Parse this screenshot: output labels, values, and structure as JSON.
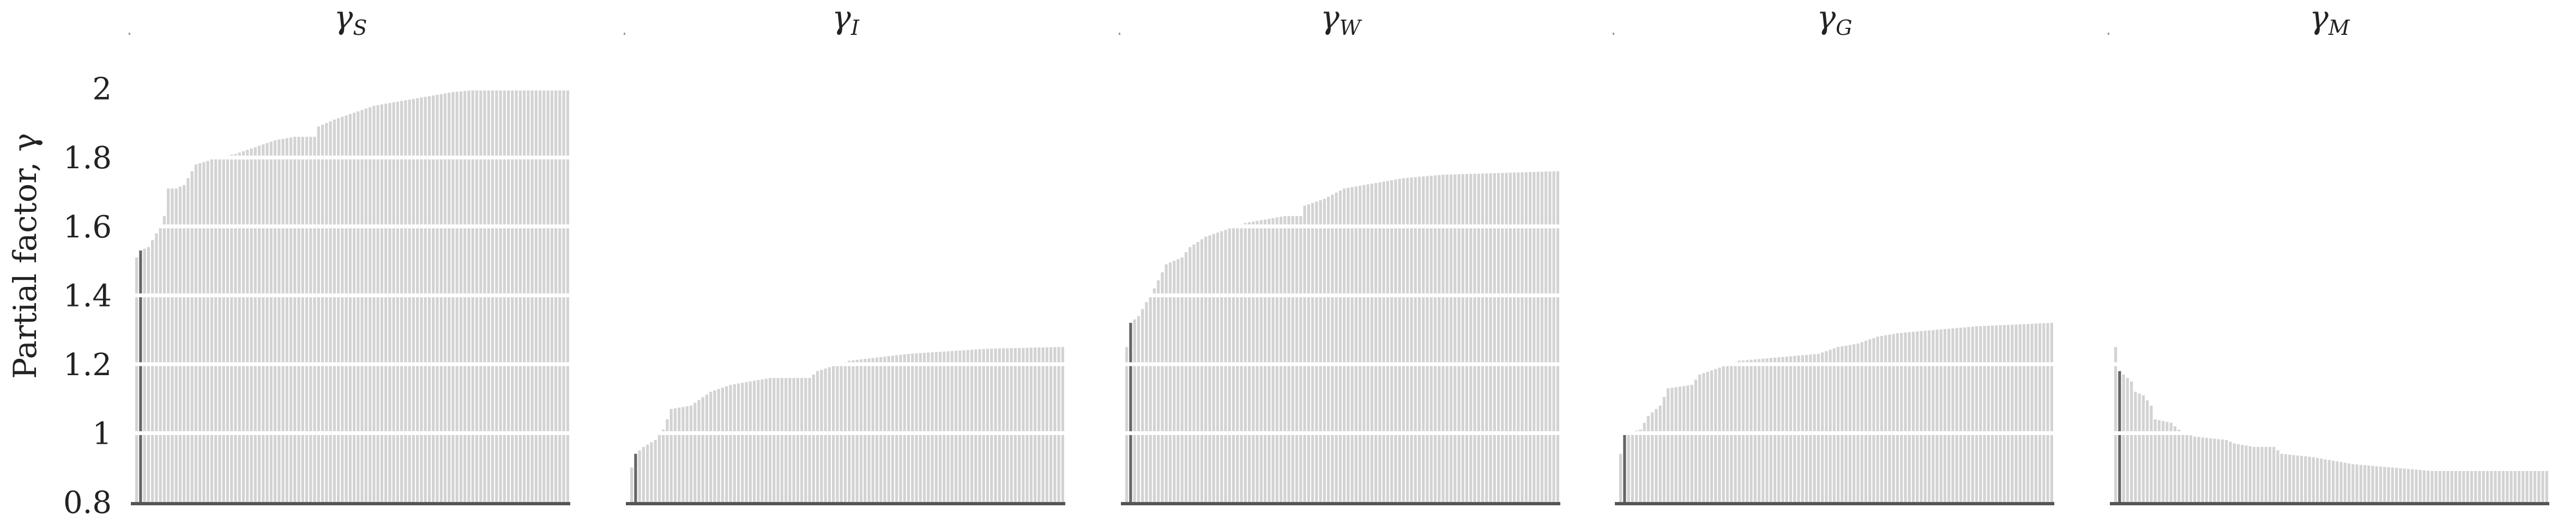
{
  "figure": {
    "ylabel": "Partial factor, γ"
  },
  "chart_data": [
    {
      "type": "bar",
      "title": "γS",
      "title_base": "γ",
      "title_sub": "S",
      "n_bars": 110,
      "ylim": [
        0.8,
        2.05
      ],
      "yticks": [
        "0.8",
        "1",
        "1.2",
        "1.4",
        "1.6",
        "1.8",
        "2"
      ],
      "grid": true,
      "profile": [
        [
          0,
          1.51
        ],
        [
          1,
          1.53
        ],
        [
          3,
          1.54
        ],
        [
          5,
          1.58
        ],
        [
          6,
          1.6
        ],
        [
          7,
          1.63
        ],
        [
          8,
          1.71
        ],
        [
          10,
          1.71
        ],
        [
          12,
          1.72
        ],
        [
          14,
          1.76
        ],
        [
          15,
          1.78
        ],
        [
          18,
          1.79
        ],
        [
          20,
          1.8
        ],
        [
          25,
          1.81
        ],
        [
          30,
          1.83
        ],
        [
          35,
          1.85
        ],
        [
          40,
          1.86
        ],
        [
          45,
          1.86
        ],
        [
          46,
          1.89
        ],
        [
          50,
          1.91
        ],
        [
          55,
          1.93
        ],
        [
          60,
          1.95
        ],
        [
          70,
          1.97
        ],
        [
          80,
          1.99
        ],
        [
          90,
          2.0
        ],
        [
          109,
          2.0
        ]
      ]
    },
    {
      "type": "bar",
      "title": "γI",
      "title_base": "γ",
      "title_sub": "I",
      "n_bars": 110,
      "ylim": [
        0.8,
        2.05
      ],
      "yticks": [
        "0.8",
        "1",
        "1.2",
        "1.4",
        "1.6",
        "1.8",
        "2"
      ],
      "grid": true,
      "profile": [
        [
          0,
          0.9
        ],
        [
          1,
          0.94
        ],
        [
          3,
          0.96
        ],
        [
          6,
          0.98
        ],
        [
          8,
          1.01
        ],
        [
          10,
          1.07
        ],
        [
          15,
          1.08
        ],
        [
          20,
          1.12
        ],
        [
          25,
          1.14
        ],
        [
          30,
          1.15
        ],
        [
          35,
          1.16
        ],
        [
          45,
          1.16
        ],
        [
          47,
          1.18
        ],
        [
          55,
          1.21
        ],
        [
          70,
          1.23
        ],
        [
          90,
          1.245
        ],
        [
          109,
          1.25
        ]
      ]
    },
    {
      "type": "bar",
      "title": "γW",
      "title_base": "γ",
      "title_sub": "W",
      "n_bars": 110,
      "ylim": [
        0.8,
        2.05
      ],
      "yticks": [
        "0.8",
        "1",
        "1.2",
        "1.4",
        "1.6",
        "1.8",
        "2"
      ],
      "grid": true,
      "profile": [
        [
          0,
          1.25
        ],
        [
          1,
          1.32
        ],
        [
          3,
          1.34
        ],
        [
          5,
          1.38
        ],
        [
          7,
          1.42
        ],
        [
          10,
          1.49
        ],
        [
          14,
          1.51
        ],
        [
          16,
          1.54
        ],
        [
          20,
          1.57
        ],
        [
          25,
          1.59
        ],
        [
          30,
          1.61
        ],
        [
          35,
          1.62
        ],
        [
          40,
          1.63
        ],
        [
          44,
          1.63
        ],
        [
          45,
          1.66
        ],
        [
          50,
          1.68
        ],
        [
          55,
          1.71
        ],
        [
          60,
          1.72
        ],
        [
          70,
          1.74
        ],
        [
          80,
          1.75
        ],
        [
          109,
          1.76
        ]
      ]
    },
    {
      "type": "bar",
      "title": "γG",
      "title_base": "γ",
      "title_sub": "G",
      "n_bars": 110,
      "ylim": [
        0.8,
        2.05
      ],
      "yticks": [
        "0.8",
        "1",
        "1.2",
        "1.4",
        "1.6",
        "1.8",
        "2"
      ],
      "grid": true,
      "profile": [
        [
          0,
          0.94
        ],
        [
          1,
          1.0
        ],
        [
          5,
          1.01
        ],
        [
          7,
          1.05
        ],
        [
          10,
          1.08
        ],
        [
          12,
          1.13
        ],
        [
          18,
          1.14
        ],
        [
          20,
          1.17
        ],
        [
          25,
          1.19
        ],
        [
          30,
          1.21
        ],
        [
          40,
          1.22
        ],
        [
          50,
          1.23
        ],
        [
          55,
          1.25
        ],
        [
          60,
          1.26
        ],
        [
          65,
          1.28
        ],
        [
          70,
          1.29
        ],
        [
          80,
          1.3
        ],
        [
          90,
          1.31
        ],
        [
          109,
          1.32
        ]
      ]
    },
    {
      "type": "bar",
      "title": "γM",
      "title_base": "γ",
      "title_sub": "M",
      "n_bars": 110,
      "ylim": [
        0.8,
        2.05
      ],
      "yticks": [
        "0.8",
        "1",
        "1.2",
        "1.4",
        "1.6",
        "1.8",
        "2"
      ],
      "grid": true,
      "profile": [
        [
          0,
          1.25
        ],
        [
          1,
          1.18
        ],
        [
          2,
          1.17
        ],
        [
          4,
          1.15
        ],
        [
          5,
          1.12
        ],
        [
          7,
          1.11
        ],
        [
          9,
          1.08
        ],
        [
          10,
          1.04
        ],
        [
          14,
          1.03
        ],
        [
          17,
          1.0
        ],
        [
          20,
          0.99
        ],
        [
          28,
          0.98
        ],
        [
          30,
          0.97
        ],
        [
          35,
          0.96
        ],
        [
          40,
          0.96
        ],
        [
          42,
          0.94
        ],
        [
          50,
          0.93
        ],
        [
          55,
          0.92
        ],
        [
          60,
          0.91
        ],
        [
          70,
          0.9
        ],
        [
          80,
          0.89
        ],
        [
          109,
          0.89
        ]
      ]
    }
  ]
}
